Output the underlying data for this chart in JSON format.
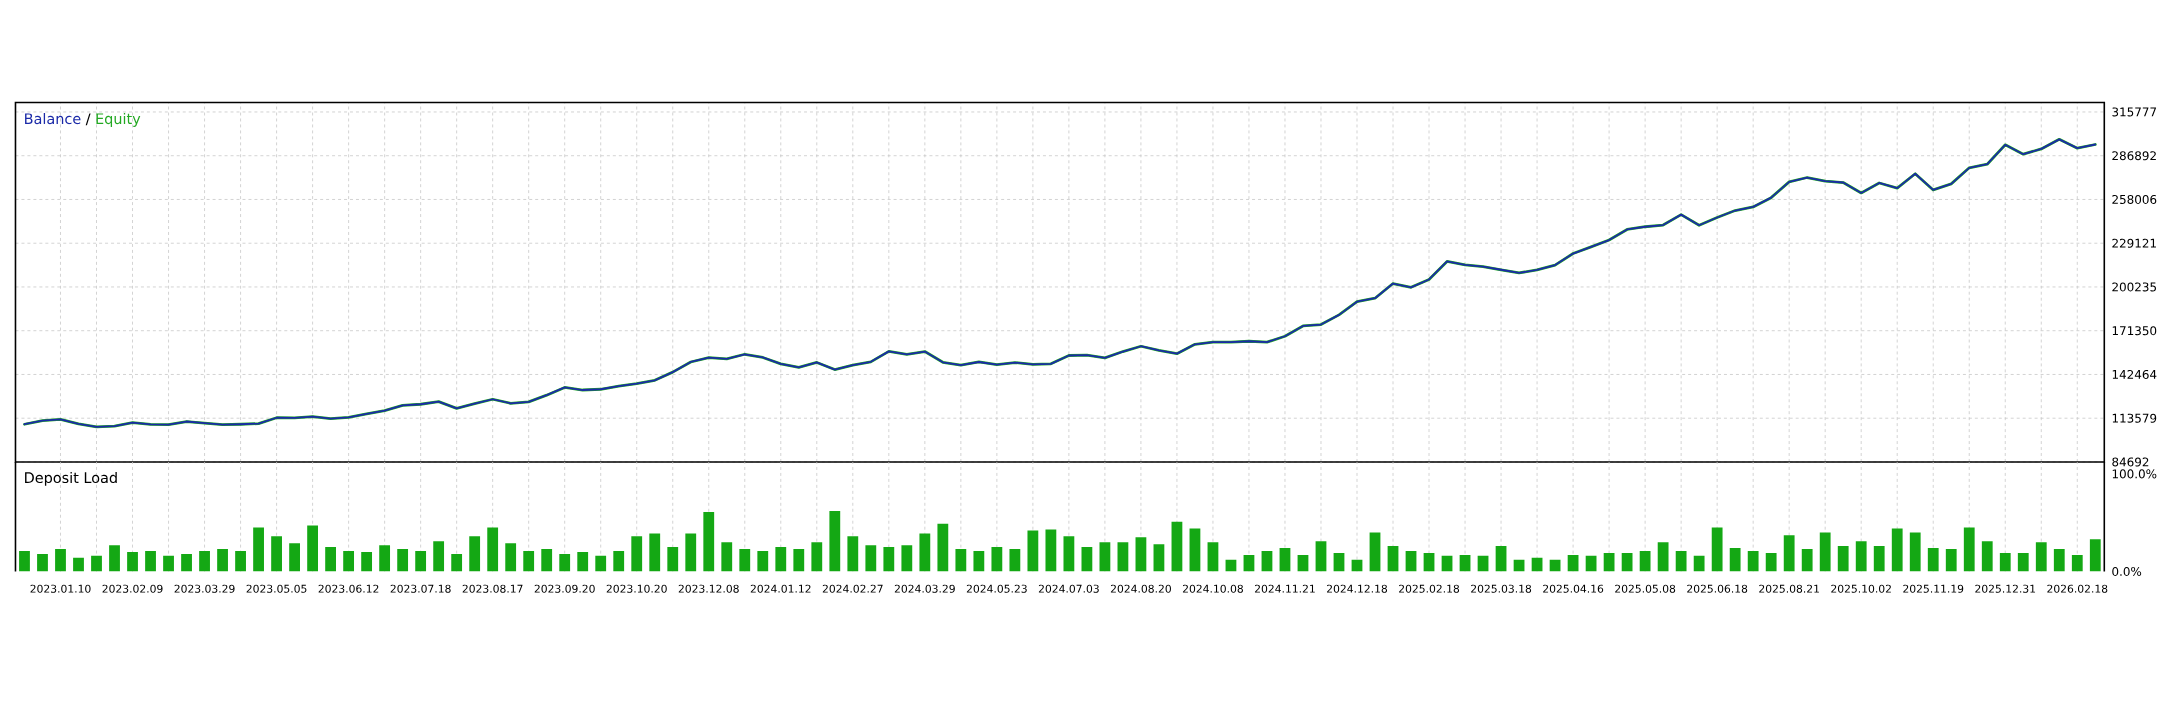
{
  "chart_data": [
    {
      "type": "line",
      "categories": [
        null,
        null,
        "2023.01.10",
        null,
        null,
        null,
        "2023.02.09",
        null,
        null,
        null,
        "2023.03.29",
        null,
        null,
        null,
        "2023.05.05",
        null,
        null,
        null,
        "2023.06.12",
        null,
        null,
        null,
        "2023.07.18",
        null,
        null,
        null,
        "2023.08.17",
        null,
        null,
        null,
        "2023.09.20",
        null,
        null,
        null,
        "2023.10.20",
        null,
        null,
        null,
        "2023.12.08",
        null,
        null,
        null,
        "2024.01.12",
        null,
        null,
        null,
        "2024.02.27",
        null,
        null,
        null,
        "2024.03.29",
        null,
        null,
        null,
        "2024.05.23",
        null,
        null,
        null,
        "2024.07.03",
        null,
        null,
        null,
        "2024.08.20",
        null,
        null,
        null,
        "2024.10.08",
        null,
        null,
        null,
        "2024.11.21",
        null,
        null,
        null,
        "2024.12.18",
        null,
        null,
        null,
        "2025.02.18",
        null,
        null,
        null,
        "2025.03.18",
        null,
        null,
        null,
        "2025.04.16",
        null,
        null,
        null,
        "2025.05.08",
        null,
        null,
        null,
        "2025.06.18",
        null,
        null,
        null,
        "2025.08.21",
        null,
        null,
        null,
        "2025.10.02",
        null,
        null,
        null,
        "2025.11.19",
        null,
        null,
        null,
        "2025.12.31",
        null,
        null,
        null,
        "2026.02.18",
        null
      ],
      "series": [
        {
          "name": "Balance",
          "color": "#1b2aa8",
          "values": [
            109600,
            112000,
            112800,
            109800,
            107900,
            108300,
            110600,
            109500,
            109300,
            111400,
            110400,
            109300,
            109600,
            110000,
            113900,
            113800,
            114700,
            113300,
            114100,
            116400,
            118600,
            122100,
            122800,
            124500,
            120100,
            123200,
            126100,
            123400,
            124400,
            128800,
            133900,
            132200,
            132700,
            134700,
            136400,
            138600,
            144000,
            150700,
            153600,
            152800,
            155800,
            153700,
            149500,
            147200,
            150400,
            145700,
            148600,
            150800,
            157700,
            155700,
            157600,
            150500,
            148600,
            150700,
            148900,
            150300,
            149100,
            149500,
            155000,
            155300,
            153400,
            157600,
            161100,
            158300,
            156200,
            162400,
            163800,
            163800,
            164400,
            163800,
            167700,
            174500,
            175400,
            181800,
            190500,
            192800,
            202500,
            200000,
            205200,
            217100,
            214800,
            213700,
            211600,
            209500,
            211500,
            214700,
            222300,
            226700,
            231200,
            238200,
            240000,
            241100,
            248000,
            241000,
            246100,
            250700,
            253100,
            259200,
            269600,
            272500,
            270100,
            269200,
            262300,
            268900,
            265500,
            275000,
            264300,
            268300,
            278900,
            281300,
            294100,
            287900,
            291400,
            297700,
            291900,
            294300
          ]
        },
        {
          "name": "Equity",
          "color": "#22a822",
          "values": [
            109600,
            112000,
            112800,
            109800,
            107900,
            108300,
            110600,
            109500,
            109300,
            111400,
            110400,
            109300,
            109600,
            110000,
            113900,
            113800,
            114700,
            113300,
            114100,
            116400,
            118600,
            122100,
            122800,
            124500,
            120100,
            123200,
            126100,
            123400,
            124400,
            128800,
            133900,
            132200,
            132700,
            134700,
            136400,
            138600,
            144000,
            150700,
            153600,
            152800,
            155800,
            153700,
            149500,
            147200,
            150400,
            145700,
            148600,
            150800,
            157700,
            155700,
            157600,
            150500,
            148600,
            150700,
            148900,
            150300,
            149100,
            149500,
            155000,
            155300,
            153400,
            157600,
            161100,
            158300,
            156200,
            162400,
            163800,
            163800,
            164400,
            163800,
            167700,
            174500,
            175400,
            181800,
            190500,
            192800,
            202500,
            200000,
            205200,
            217100,
            214800,
            213700,
            211600,
            209500,
            211500,
            214700,
            222300,
            226700,
            231200,
            238200,
            240000,
            241100,
            248000,
            241000,
            246100,
            250700,
            253100,
            259200,
            269600,
            272500,
            270100,
            269200,
            262300,
            268900,
            265500,
            275000,
            264300,
            268300,
            278900,
            281300,
            294100,
            287900,
            291400,
            297700,
            291900,
            294300
          ]
        }
      ],
      "ylim": [
        84692,
        322000
      ],
      "yticks": [
        84692,
        113579,
        142464,
        171350,
        200235,
        229121,
        258006,
        286892,
        315777
      ],
      "grid": true,
      "tick_labels": "y",
      "annotations": [
        "/"
      ]
    },
    {
      "type": "bar",
      "title": "Deposit Load",
      "categories": [
        null,
        null,
        "2023.01.10",
        null,
        null,
        null,
        "2023.02.09",
        null,
        null,
        null,
        "2023.03.29",
        null,
        null,
        null,
        "2023.05.05",
        null,
        null,
        null,
        "2023.06.12",
        null,
        null,
        null,
        "2023.07.18",
        null,
        null,
        null,
        "2023.08.17",
        null,
        null,
        null,
        "2023.09.20",
        null,
        null,
        null,
        "2023.10.20",
        null,
        null,
        null,
        "2023.12.08",
        null,
        null,
        null,
        "2024.01.12",
        null,
        null,
        null,
        "2024.02.27",
        null,
        null,
        null,
        "2024.03.29",
        null,
        null,
        null,
        "2024.05.23",
        null,
        null,
        null,
        "2024.07.03",
        null,
        null,
        null,
        "2024.08.20",
        null,
        null,
        null,
        "2024.10.08",
        null,
        null,
        null,
        "2024.11.21",
        null,
        null,
        null,
        "2024.12.18",
        null,
        null,
        null,
        "2025.02.18",
        null,
        null,
        null,
        "2025.03.18",
        null,
        null,
        null,
        "2025.04.16",
        null,
        null,
        null,
        "2025.05.08",
        null,
        null,
        null,
        "2025.06.18",
        null,
        null,
        null,
        "2025.08.21",
        null,
        null,
        null,
        "2025.10.02",
        null,
        null,
        null,
        "2025.11.19",
        null,
        null,
        null,
        "2025.12.31",
        null,
        null,
        null,
        "2026.02.18",
        null
      ],
      "values": [
        21,
        18,
        23,
        14,
        16,
        27,
        20,
        21,
        16,
        18,
        21,
        23,
        21,
        45,
        36,
        29,
        47,
        25,
        21,
        20,
        27,
        23,
        21,
        31,
        18,
        36,
        45,
        29,
        21,
        23,
        18,
        20,
        16,
        21,
        36,
        39,
        25,
        39,
        61,
        30,
        23,
        21,
        25,
        23,
        30,
        62,
        36,
        27,
        25,
        27,
        39,
        49,
        23,
        21,
        25,
        23,
        42,
        43,
        36,
        25,
        30,
        30,
        35,
        28,
        51,
        44,
        30,
        12,
        17,
        21,
        24,
        17,
        31,
        19,
        12,
        40,
        26,
        21,
        19,
        16,
        17,
        16,
        26,
        12,
        14,
        12,
        17,
        16,
        19,
        19,
        21,
        30,
        21,
        16,
        45,
        24,
        21,
        19,
        37,
        23,
        40,
        26,
        31,
        26,
        44,
        40,
        24,
        23,
        45,
        31,
        19,
        19,
        30,
        23,
        17,
        33
      ],
      "color": "#14a814",
      "ylim": [
        0,
        112.2
      ],
      "yticks": [
        {
          "value": 0,
          "label": "0.0%"
        },
        {
          "value": 100,
          "label": "100.0%"
        }
      ],
      "grid": "x"
    }
  ]
}
